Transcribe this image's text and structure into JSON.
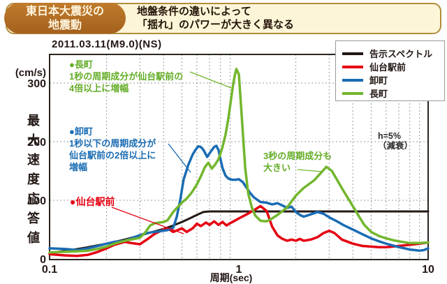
{
  "header": {
    "badge_line1": "東日本大震災の",
    "badge_line2": "地震動",
    "subtitle_line1": "地盤条件の違いによって",
    "subtitle_line2": "「揺れ」のパワーが大きく異なる"
  },
  "chart_data": {
    "type": "line",
    "title": "2011.03.11(M9.0)(NS)",
    "xlabel": "周期(sec)",
    "ylabel": "最大速度応答値",
    "y_unit": "(cm/s)",
    "x_scale": "log",
    "xlim": [
      0.1,
      10
    ],
    "ylim": [
      0,
      349
    ],
    "x_ticks": [
      0.1,
      1,
      10
    ],
    "y_ticks": [
      0,
      100,
      200,
      300
    ],
    "x_minor_gridlines": [
      0.2,
      0.3,
      0.4,
      0.5,
      0.6,
      0.7,
      0.8,
      0.9,
      2,
      3,
      4,
      5,
      6,
      7,
      8,
      9
    ],
    "grid": "dashed",
    "legend_position": "top-right",
    "damping_note_line1": "h=5%",
    "damping_note_line2": "（減衰）",
    "series": [
      {
        "name": "告示スペクトル",
        "color": "#231815",
        "points": [
          [
            0.1,
            10
          ],
          [
            0.13,
            15
          ],
          [
            0.16,
            20
          ],
          [
            0.2,
            26
          ],
          [
            0.25,
            33
          ],
          [
            0.3,
            40
          ],
          [
            0.35,
            46
          ],
          [
            0.4,
            51
          ],
          [
            0.45,
            57
          ],
          [
            0.5,
            63
          ],
          [
            0.55,
            69
          ],
          [
            0.6,
            75
          ],
          [
            0.65,
            80
          ],
          [
            0.7,
            81
          ],
          [
            1,
            81
          ],
          [
            1.5,
            81
          ],
          [
            2,
            81
          ],
          [
            3,
            81
          ],
          [
            5,
            81
          ],
          [
            7,
            81
          ],
          [
            10,
            81
          ]
        ]
      },
      {
        "name": "仙台駅前",
        "color": "#e50012",
        "points": [
          [
            0.1,
            8
          ],
          [
            0.12,
            6
          ],
          [
            0.14,
            5
          ],
          [
            0.16,
            7
          ],
          [
            0.18,
            12
          ],
          [
            0.2,
            18
          ],
          [
            0.22,
            24
          ],
          [
            0.25,
            29
          ],
          [
            0.27,
            27
          ],
          [
            0.3,
            25
          ],
          [
            0.33,
            34
          ],
          [
            0.36,
            43
          ],
          [
            0.4,
            50
          ],
          [
            0.42,
            52
          ],
          [
            0.45,
            46
          ],
          [
            0.5,
            52
          ],
          [
            0.53,
            46
          ],
          [
            0.57,
            52
          ],
          [
            0.6,
            60
          ],
          [
            0.63,
            56
          ],
          [
            0.67,
            62
          ],
          [
            0.7,
            58
          ],
          [
            0.74,
            64
          ],
          [
            0.78,
            58
          ],
          [
            0.82,
            63
          ],
          [
            0.86,
            57
          ],
          [
            0.9,
            61
          ],
          [
            0.95,
            65
          ],
          [
            1.0,
            69
          ],
          [
            1.1,
            76
          ],
          [
            1.2,
            83
          ],
          [
            1.3,
            90
          ],
          [
            1.4,
            82
          ],
          [
            1.5,
            55
          ],
          [
            1.6,
            40
          ],
          [
            1.7,
            34
          ],
          [
            1.8,
            31
          ],
          [
            1.9,
            33
          ],
          [
            2.0,
            31
          ],
          [
            2.1,
            34
          ],
          [
            2.2,
            31
          ],
          [
            2.4,
            33
          ],
          [
            2.6,
            37
          ],
          [
            2.8,
            44
          ],
          [
            3.0,
            48
          ],
          [
            3.2,
            44
          ],
          [
            3.5,
            33
          ],
          [
            4.0,
            26
          ],
          [
            4.5,
            22
          ],
          [
            5.0,
            21
          ],
          [
            5.5,
            20
          ],
          [
            6.0,
            20
          ],
          [
            6.5,
            21
          ],
          [
            7.0,
            22
          ],
          [
            8.0,
            24
          ],
          [
            9.0,
            26
          ],
          [
            10.0,
            28
          ]
        ]
      },
      {
        "name": "卸町",
        "color": "#1a6cb3",
        "points": [
          [
            0.1,
            18
          ],
          [
            0.12,
            17
          ],
          [
            0.14,
            15
          ],
          [
            0.16,
            18
          ],
          [
            0.18,
            22
          ],
          [
            0.2,
            26
          ],
          [
            0.22,
            29
          ],
          [
            0.25,
            31
          ],
          [
            0.28,
            37
          ],
          [
            0.31,
            42
          ],
          [
            0.34,
            45
          ],
          [
            0.38,
            47
          ],
          [
            0.42,
            49
          ],
          [
            0.45,
            53
          ],
          [
            0.47,
            72
          ],
          [
            0.49,
            100
          ],
          [
            0.51,
            135
          ],
          [
            0.54,
            160
          ],
          [
            0.57,
            178
          ],
          [
            0.59,
            186
          ],
          [
            0.61,
            192
          ],
          [
            0.63,
            191
          ],
          [
            0.65,
            186
          ],
          [
            0.68,
            174
          ],
          [
            0.71,
            183
          ],
          [
            0.74,
            191
          ],
          [
            0.76,
            193
          ],
          [
            0.78,
            186
          ],
          [
            0.8,
            170
          ],
          [
            0.82,
            155
          ],
          [
            0.85,
            142
          ],
          [
            0.88,
            137
          ],
          [
            0.92,
            135
          ],
          [
            0.96,
            135
          ],
          [
            1.0,
            136
          ],
          [
            1.05,
            131
          ],
          [
            1.1,
            121
          ],
          [
            1.15,
            112
          ],
          [
            1.2,
            105
          ],
          [
            1.3,
            97
          ],
          [
            1.4,
            96
          ],
          [
            1.5,
            93
          ],
          [
            1.6,
            95
          ],
          [
            1.7,
            91
          ],
          [
            1.8,
            87
          ],
          [
            1.9,
            89
          ],
          [
            2.0,
            80
          ],
          [
            2.1,
            75
          ],
          [
            2.2,
            72
          ],
          [
            2.4,
            76
          ],
          [
            2.6,
            80
          ],
          [
            2.8,
            77
          ],
          [
            3.0,
            71
          ],
          [
            3.3,
            64
          ],
          [
            3.6,
            57
          ],
          [
            4.0,
            50
          ],
          [
            4.5,
            42
          ],
          [
            5.0,
            35
          ],
          [
            5.5,
            30
          ],
          [
            6.0,
            26
          ],
          [
            6.5,
            23
          ],
          [
            7.0,
            20
          ],
          [
            7.5,
            18
          ],
          [
            8.0,
            16
          ],
          [
            8.5,
            15
          ],
          [
            9.0,
            14
          ],
          [
            9.5,
            15
          ],
          [
            10.0,
            18
          ]
        ]
      },
      {
        "name": "長町",
        "color": "#72b62d",
        "points": [
          [
            0.1,
            11
          ],
          [
            0.12,
            12
          ],
          [
            0.14,
            13
          ],
          [
            0.16,
            14
          ],
          [
            0.18,
            17
          ],
          [
            0.2,
            21
          ],
          [
            0.22,
            26
          ],
          [
            0.25,
            31
          ],
          [
            0.28,
            34
          ],
          [
            0.3,
            36
          ],
          [
            0.32,
            45
          ],
          [
            0.34,
            57
          ],
          [
            0.36,
            61
          ],
          [
            0.4,
            63
          ],
          [
            0.42,
            66
          ],
          [
            0.45,
            80
          ],
          [
            0.48,
            90
          ],
          [
            0.5,
            96
          ],
          [
            0.53,
            103
          ],
          [
            0.56,
            112
          ],
          [
            0.6,
            127
          ],
          [
            0.63,
            141
          ],
          [
            0.66,
            156
          ],
          [
            0.69,
            164
          ],
          [
            0.72,
            154
          ],
          [
            0.75,
            161
          ],
          [
            0.78,
            170
          ],
          [
            0.8,
            180
          ],
          [
            0.82,
            191
          ],
          [
            0.85,
            212
          ],
          [
            0.88,
            240
          ],
          [
            0.9,
            262
          ],
          [
            0.93,
            295
          ],
          [
            0.95,
            312
          ],
          [
            0.97,
            324
          ],
          [
            1.0,
            315
          ],
          [
            1.02,
            275
          ],
          [
            1.05,
            215
          ],
          [
            1.08,
            155
          ],
          [
            1.12,
            112
          ],
          [
            1.17,
            88
          ],
          [
            1.22,
            74
          ],
          [
            1.3,
            65
          ],
          [
            1.4,
            64
          ],
          [
            1.5,
            69
          ],
          [
            1.6,
            75
          ],
          [
            1.8,
            88
          ],
          [
            2.0,
            108
          ],
          [
            2.2,
            121
          ],
          [
            2.5,
            134
          ],
          [
            2.7,
            146
          ],
          [
            2.9,
            157
          ],
          [
            3.1,
            150
          ],
          [
            3.3,
            135
          ],
          [
            3.6,
            114
          ],
          [
            4.0,
            90
          ],
          [
            4.3,
            73
          ],
          [
            4.6,
            58
          ],
          [
            5.0,
            46
          ],
          [
            5.5,
            39
          ],
          [
            6.0,
            35
          ],
          [
            6.5,
            32
          ],
          [
            7.0,
            30
          ],
          [
            8.0,
            27
          ],
          [
            9.0,
            27
          ],
          [
            10.0,
            28
          ]
        ]
      }
    ]
  },
  "annotations": {
    "nagamachi": {
      "color": "#64ad27",
      "lines": [
        "●長町",
        "1秒の周期成分が仙台駅前の",
        "4倍以上に増幅"
      ]
    },
    "oroshimachi": {
      "color": "#1a6cb3",
      "lines": [
        "●卸町",
        "1秒以下の周期成分が",
        "仙台駅前の2倍以上に",
        "増幅"
      ]
    },
    "sendai": {
      "color": "#e50012",
      "lines": [
        "●仙台駅前"
      ]
    },
    "three_sec": {
      "color": "#64ad27",
      "lines": [
        "3秒の周期成分も",
        "大きい"
      ]
    }
  }
}
